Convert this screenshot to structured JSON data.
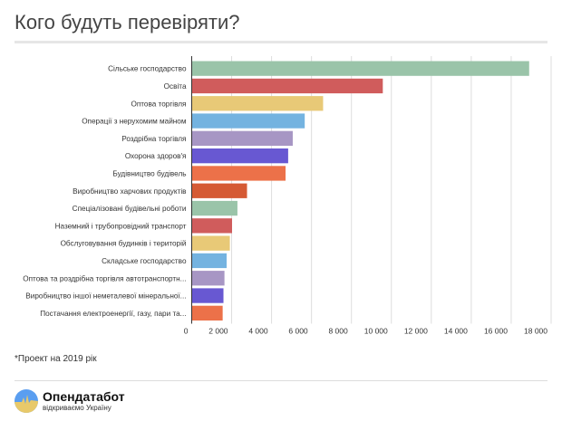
{
  "title": "Кого будуть перевіряти?",
  "footnote": "*Проект на 2019 рік",
  "brand": {
    "name": "Опендатабот",
    "tagline": "відкриваємо Україну",
    "colors": {
      "top": "#5a9ef0",
      "bottom": "#e8c96a"
    }
  },
  "chart_data": {
    "type": "bar",
    "orientation": "horizontal",
    "title": "Кого будуть перевіряти?",
    "xlabel": "",
    "ylabel": "",
    "xlim": [
      0,
      18000
    ],
    "grid": true,
    "ticks": [
      "0",
      "2 000",
      "4 000",
      "6 000",
      "8 000",
      "10 000",
      "12 000",
      "14 000",
      "16 000",
      "18 000"
    ],
    "categories": [
      "Сільське господарство",
      "Освіта",
      "Оптова торгівля",
      "Операції з нерухомим майном",
      "Роздрібна торгівля",
      "Охорона здоров'я",
      "Будівництво будівель",
      "Виробництво харчових продуктів",
      "Спеціалізовані будівельні роботи",
      "Наземний і трубопровідний транспорт",
      "Обслуговування будинків і територій",
      "Складське господарство",
      "Оптова та роздрібна торгівля автотранспортн...",
      "Виробництво іншої неметалевої мінеральної...",
      "Постачання електроенергії, газу, пари та..."
    ],
    "values": [
      16900,
      9570,
      6580,
      5660,
      5060,
      4830,
      4700,
      2770,
      2290,
      2020,
      1910,
      1750,
      1640,
      1590,
      1550
    ],
    "colors": [
      "#9ac4a9",
      "#d05c5c",
      "#e8c977",
      "#74b3e0",
      "#a796c4",
      "#6858d2",
      "#ec7149",
      "#d55a34",
      "#9ac4a9",
      "#d05c5c",
      "#e8c977",
      "#74b3e0",
      "#a796c4",
      "#6858d2",
      "#ec7149"
    ]
  }
}
